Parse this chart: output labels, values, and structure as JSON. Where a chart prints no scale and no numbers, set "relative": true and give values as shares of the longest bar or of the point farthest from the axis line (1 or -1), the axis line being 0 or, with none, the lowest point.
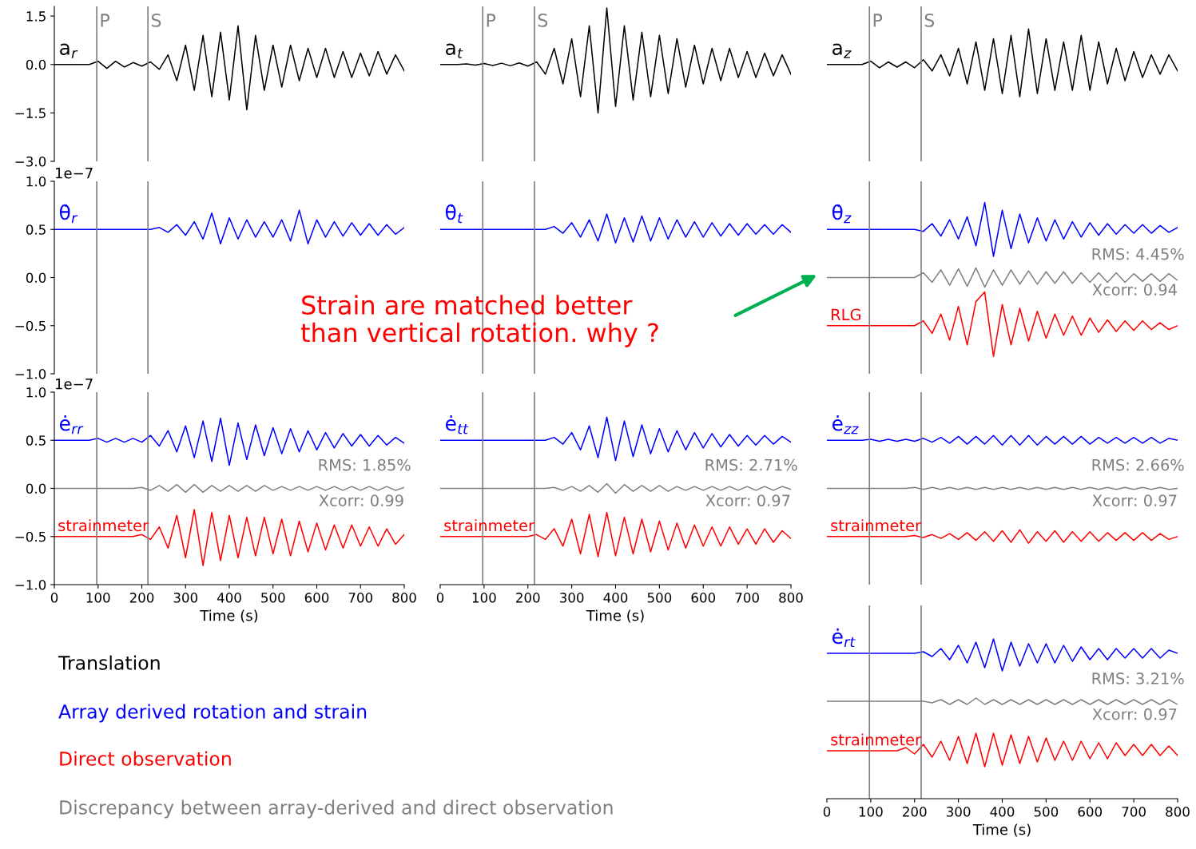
{
  "chart_data": [
    {
      "type": "line",
      "title": "a$_{r}$",
      "xlim": [
        0,
        800
      ],
      "ylim": [
        -3.0,
        1.8
      ],
      "yticks": [
        {
          "value": 1.5,
          "label": "1.5"
        },
        {
          "value": 0,
          "label": "0.0"
        },
        {
          "value": -1.5,
          "label": "−1.5"
        },
        {
          "value": -3.0,
          "label": "−3.0"
        }
      ],
      "tick_labels": "y",
      "x": [
        0,
        20,
        40,
        60,
        80,
        100,
        120,
        140,
        160,
        180,
        200,
        220,
        240,
        260,
        280,
        300,
        320,
        340,
        360,
        380,
        400,
        420,
        440,
        460,
        480,
        500,
        520,
        540,
        560,
        580,
        600,
        620,
        640,
        660,
        680,
        700,
        720,
        740,
        760,
        780,
        800
      ],
      "ref_lines": [
        {
          "axis": "x",
          "value": 97,
          "label": "P",
          "color": "#808080"
        },
        {
          "axis": "x",
          "value": 214,
          "label": "S",
          "color": "#808080"
        }
      ],
      "series": [
        {
          "color": "#000000",
          "values": [
            0,
            0,
            0,
            0,
            0,
            0.1,
            -0.12,
            0.1,
            -0.08,
            0.06,
            -0.05,
            0.08,
            -0.15,
            0.3,
            -0.5,
            0.6,
            -0.8,
            0.9,
            -1.0,
            1.0,
            -1.1,
            1.2,
            -1.4,
            0.9,
            -0.8,
            0.6,
            -0.7,
            0.6,
            -0.5,
            0.5,
            -0.4,
            0.5,
            -0.4,
            0.4,
            -0.4,
            0.35,
            -0.35,
            0.4,
            -0.3,
            0.3,
            -0.2
          ]
        }
      ]
    },
    {
      "type": "line",
      "title": "a$_{t}$",
      "xlim": [
        0,
        800
      ],
      "ylim": [
        -3.0,
        1.8
      ],
      "tick_labels": false,
      "x": [
        0,
        20,
        40,
        60,
        80,
        100,
        120,
        140,
        160,
        180,
        200,
        220,
        240,
        260,
        280,
        300,
        320,
        340,
        360,
        380,
        400,
        420,
        440,
        460,
        480,
        500,
        520,
        540,
        560,
        580,
        600,
        620,
        640,
        660,
        680,
        700,
        720,
        740,
        760,
        780,
        800
      ],
      "ref_lines": [
        {
          "axis": "x",
          "value": 97,
          "label": "P",
          "color": "#808080"
        },
        {
          "axis": "x",
          "value": 215,
          "label": "S",
          "color": "#808080"
        }
      ],
      "series": [
        {
          "color": "#000000",
          "values": [
            0,
            0,
            0,
            0.02,
            -0.02,
            0.03,
            -0.03,
            0.04,
            -0.04,
            0.05,
            -0.05,
            0.08,
            -0.3,
            0.5,
            -0.6,
            0.8,
            -1.0,
            1.2,
            -1.5,
            1.75,
            -1.3,
            1.2,
            -1.1,
            1.0,
            -1.0,
            0.9,
            -0.9,
            0.8,
            -0.7,
            0.6,
            -0.6,
            0.5,
            -0.5,
            0.5,
            -0.4,
            0.4,
            -0.4,
            0.35,
            -0.35,
            0.3,
            -0.3
          ]
        }
      ]
    },
    {
      "type": "line",
      "title": "a$_{z}$",
      "xlim": [
        0,
        800
      ],
      "ylim": [
        -3.0,
        1.8
      ],
      "tick_labels": false,
      "x": [
        0,
        20,
        40,
        60,
        80,
        100,
        120,
        140,
        160,
        180,
        200,
        220,
        240,
        260,
        280,
        300,
        320,
        340,
        360,
        380,
        400,
        420,
        440,
        460,
        480,
        500,
        520,
        540,
        560,
        580,
        600,
        620,
        640,
        660,
        680,
        700,
        720,
        740,
        760,
        780,
        800
      ],
      "ref_lines": [
        {
          "axis": "x",
          "value": 97,
          "label": "P",
          "color": "#808080"
        },
        {
          "axis": "x",
          "value": 215,
          "label": "S",
          "color": "#808080"
        }
      ],
      "series": [
        {
          "color": "#000000",
          "values": [
            0,
            0,
            0,
            0,
            0,
            0.1,
            -0.1,
            0.08,
            -0.08,
            0.08,
            -0.1,
            0.15,
            -0.2,
            0.3,
            -0.35,
            0.5,
            -0.6,
            0.7,
            -0.8,
            0.8,
            -0.9,
            0.9,
            -1.0,
            1.1,
            -0.9,
            0.8,
            -0.8,
            0.7,
            -0.8,
            0.9,
            -0.8,
            0.7,
            -0.6,
            0.5,
            -0.5,
            0.4,
            -0.4,
            0.3,
            -0.3,
            0.3,
            -0.2
          ]
        }
      ]
    },
    {
      "type": "line",
      "title": "θ̇$_{r}$",
      "ylabel": "1e−7",
      "xlim": [
        0,
        800
      ],
      "ylim": [
        -1.0,
        1.0
      ],
      "yticks": [
        {
          "value": 1.0,
          "label": "1.0"
        },
        {
          "value": 0.5,
          "label": "0.5"
        },
        {
          "value": 0,
          "label": "0.0"
        },
        {
          "value": -0.5,
          "label": "−0.5"
        },
        {
          "value": -1.0,
          "label": "−1.0"
        }
      ],
      "tick_labels": "y",
      "x": [
        0,
        20,
        40,
        60,
        80,
        100,
        120,
        140,
        160,
        180,
        200,
        220,
        240,
        260,
        280,
        300,
        320,
        340,
        360,
        380,
        400,
        420,
        440,
        460,
        480,
        500,
        520,
        540,
        560,
        580,
        600,
        620,
        640,
        660,
        680,
        700,
        720,
        740,
        760,
        780,
        800
      ],
      "ref_lines": [
        {
          "axis": "x",
          "value": 97,
          "color": "#808080"
        },
        {
          "axis": "x",
          "value": 214,
          "color": "#808080"
        }
      ],
      "series": [
        {
          "color": "#0000ff",
          "values": [
            0.5,
            0.5,
            0.5,
            0.5,
            0.5,
            0.5,
            0.5,
            0.5,
            0.5,
            0.5,
            0.5,
            0.5,
            0.52,
            0.47,
            0.55,
            0.44,
            0.58,
            0.4,
            0.67,
            0.35,
            0.62,
            0.4,
            0.6,
            0.42,
            0.58,
            0.42,
            0.6,
            0.38,
            0.7,
            0.35,
            0.6,
            0.42,
            0.58,
            0.43,
            0.57,
            0.44,
            0.56,
            0.44,
            0.55,
            0.45,
            0.52
          ]
        }
      ]
    },
    {
      "type": "line",
      "title": "θ̇$_{t}$",
      "xlim": [
        0,
        800
      ],
      "ylim": [
        -1.0,
        1.0
      ],
      "tick_labels": false,
      "x": [
        0,
        20,
        40,
        60,
        80,
        100,
        120,
        140,
        160,
        180,
        200,
        220,
        240,
        260,
        280,
        300,
        320,
        340,
        360,
        380,
        400,
        420,
        440,
        460,
        480,
        500,
        520,
        540,
        560,
        580,
        600,
        620,
        640,
        660,
        680,
        700,
        720,
        740,
        760,
        780,
        800
      ],
      "ref_lines": [
        {
          "axis": "x",
          "value": 97,
          "color": "#808080"
        },
        {
          "axis": "x",
          "value": 215,
          "color": "#808080"
        }
      ],
      "series": [
        {
          "color": "#0000ff",
          "values": [
            0.5,
            0.5,
            0.5,
            0.5,
            0.5,
            0.5,
            0.5,
            0.5,
            0.5,
            0.5,
            0.5,
            0.5,
            0.5,
            0.53,
            0.46,
            0.57,
            0.42,
            0.6,
            0.38,
            0.66,
            0.36,
            0.62,
            0.37,
            0.64,
            0.38,
            0.62,
            0.4,
            0.6,
            0.42,
            0.58,
            0.42,
            0.57,
            0.43,
            0.56,
            0.44,
            0.56,
            0.45,
            0.55,
            0.45,
            0.55,
            0.47
          ]
        }
      ]
    },
    {
      "type": "line",
      "title": "θ̇$_{z}$",
      "xlim": [
        0,
        800
      ],
      "ylim": [
        -1.0,
        1.0
      ],
      "tick_labels": false,
      "annotations": [
        "RMS: 4.45%",
        "Xcorr: 0.94",
        "Strain are matched better\nthan vertical rotation. why ?"
      ],
      "x": [
        0,
        20,
        40,
        60,
        80,
        100,
        120,
        140,
        160,
        180,
        200,
        220,
        240,
        260,
        280,
        300,
        320,
        340,
        360,
        380,
        400,
        420,
        440,
        460,
        480,
        500,
        520,
        540,
        560,
        580,
        600,
        620,
        640,
        660,
        680,
        700,
        720,
        740,
        760,
        780,
        800
      ],
      "ref_lines": [
        {
          "axis": "x",
          "value": 97,
          "color": "#808080"
        },
        {
          "axis": "x",
          "value": 215,
          "color": "#808080"
        }
      ],
      "series": [
        {
          "color": "#0000ff",
          "values": [
            0.5,
            0.5,
            0.5,
            0.5,
            0.5,
            0.5,
            0.5,
            0.5,
            0.5,
            0.5,
            0.5,
            0.48,
            0.56,
            0.43,
            0.6,
            0.4,
            0.63,
            0.33,
            0.78,
            0.22,
            0.7,
            0.3,
            0.66,
            0.36,
            0.62,
            0.38,
            0.6,
            0.4,
            0.58,
            0.42,
            0.57,
            0.44,
            0.56,
            0.45,
            0.55,
            0.46,
            0.55,
            0.46,
            0.54,
            0.47,
            0.52
          ]
        },
        {
          "color": "#808080",
          "values": [
            0,
            0,
            0,
            0,
            0,
            0,
            0,
            0,
            0,
            0,
            0,
            0.05,
            -0.05,
            0.08,
            -0.08,
            0.09,
            -0.09,
            0.1,
            -0.1,
            0.08,
            -0.08,
            0.08,
            -0.07,
            0.07,
            -0.07,
            0.06,
            -0.06,
            0.06,
            -0.06,
            0.05,
            -0.05,
            0.05,
            -0.05,
            0.05,
            -0.05,
            0.04,
            -0.04,
            0.04,
            -0.04,
            0.04,
            -0.03
          ]
        },
        {
          "name": "RLG",
          "color": "#ff0000",
          "values": [
            -0.5,
            -0.5,
            -0.5,
            -0.5,
            -0.5,
            -0.5,
            -0.5,
            -0.5,
            -0.5,
            -0.5,
            -0.5,
            -0.45,
            -0.58,
            -0.38,
            -0.65,
            -0.3,
            -0.7,
            -0.25,
            -0.15,
            -0.82,
            -0.28,
            -0.7,
            -0.32,
            -0.66,
            -0.35,
            -0.63,
            -0.38,
            -0.6,
            -0.4,
            -0.6,
            -0.42,
            -0.57,
            -0.44,
            -0.56,
            -0.45,
            -0.55,
            -0.45,
            -0.54,
            -0.47,
            -0.54,
            -0.5
          ]
        }
      ]
    },
    {
      "type": "line",
      "title": "ė$_{rr}$",
      "ylabel": "1e−7",
      "xlabel": "Time (s)",
      "xlim": [
        0,
        800
      ],
      "ylim": [
        -1.0,
        1.0
      ],
      "xticks": [
        0,
        100,
        200,
        300,
        400,
        500,
        600,
        700,
        800
      ],
      "yticks": [
        {
          "value": 1.0,
          "label": "1.0"
        },
        {
          "value": 0.5,
          "label": "0.5"
        },
        {
          "value": 0,
          "label": "0.0"
        },
        {
          "value": -0.5,
          "label": "−0.5"
        },
        {
          "value": -1.0,
          "label": "−1.0"
        }
      ],
      "annotations": [
        "RMS: 1.85%",
        "Xcorr: 0.99"
      ],
      "x": [
        0,
        20,
        40,
        60,
        80,
        100,
        120,
        140,
        160,
        180,
        200,
        220,
        240,
        260,
        280,
        300,
        320,
        340,
        360,
        380,
        400,
        420,
        440,
        460,
        480,
        500,
        520,
        540,
        560,
        580,
        600,
        620,
        640,
        660,
        680,
        700,
        720,
        740,
        760,
        780,
        800
      ],
      "ref_lines": [
        {
          "axis": "x",
          "value": 97,
          "color": "#808080"
        },
        {
          "axis": "x",
          "value": 214,
          "color": "#808080"
        }
      ],
      "series": [
        {
          "color": "#0000ff",
          "values": [
            0.5,
            0.5,
            0.5,
            0.5,
            0.5,
            0.52,
            0.48,
            0.52,
            0.48,
            0.52,
            0.48,
            0.55,
            0.44,
            0.6,
            0.38,
            0.65,
            0.32,
            0.7,
            0.28,
            0.73,
            0.24,
            0.68,
            0.3,
            0.66,
            0.34,
            0.63,
            0.36,
            0.62,
            0.38,
            0.6,
            0.4,
            0.58,
            0.42,
            0.57,
            0.44,
            0.56,
            0.44,
            0.55,
            0.45,
            0.53,
            0.47
          ]
        },
        {
          "color": "#808080",
          "values": [
            0,
            0,
            0,
            0,
            0,
            0,
            0,
            0,
            0,
            0,
            0.01,
            -0.02,
            0.03,
            -0.03,
            0.04,
            -0.04,
            0.04,
            -0.04,
            0.03,
            -0.03,
            0.03,
            -0.03,
            0.03,
            -0.03,
            0.03,
            -0.02,
            0.02,
            -0.02,
            0.02,
            -0.02,
            0.02,
            -0.02,
            0.02,
            -0.02,
            0.02,
            -0.02,
            0.02,
            -0.02,
            0.02,
            -0.02,
            0.01
          ]
        },
        {
          "name": "strainmeter",
          "color": "#ff0000",
          "values": [
            -0.5,
            -0.5,
            -0.5,
            -0.5,
            -0.5,
            -0.5,
            -0.5,
            -0.5,
            -0.5,
            -0.5,
            -0.48,
            -0.53,
            -0.4,
            -0.62,
            -0.28,
            -0.72,
            -0.22,
            -0.8,
            -0.25,
            -0.75,
            -0.28,
            -0.72,
            -0.3,
            -0.7,
            -0.3,
            -0.68,
            -0.32,
            -0.7,
            -0.34,
            -0.66,
            -0.36,
            -0.64,
            -0.38,
            -0.62,
            -0.38,
            -0.6,
            -0.4,
            -0.6,
            -0.42,
            -0.58,
            -0.48
          ]
        }
      ]
    },
    {
      "type": "line",
      "title": "ė$_{tt}$",
      "xlabel": "Time (s)",
      "xlim": [
        0,
        800
      ],
      "ylim": [
        -1.0,
        1.0
      ],
      "xticks": [
        0,
        100,
        200,
        300,
        400,
        500,
        600,
        700,
        800
      ],
      "tick_labels": "x",
      "annotations": [
        "RMS: 2.71%",
        "Xcorr: 0.97"
      ],
      "x": [
        0,
        20,
        40,
        60,
        80,
        100,
        120,
        140,
        160,
        180,
        200,
        220,
        240,
        260,
        280,
        300,
        320,
        340,
        360,
        380,
        400,
        420,
        440,
        460,
        480,
        500,
        520,
        540,
        560,
        580,
        600,
        620,
        640,
        660,
        680,
        700,
        720,
        740,
        760,
        780,
        800
      ],
      "ref_lines": [
        {
          "axis": "x",
          "value": 97,
          "color": "#808080"
        },
        {
          "axis": "x",
          "value": 215,
          "color": "#808080"
        }
      ],
      "series": [
        {
          "color": "#0000ff",
          "values": [
            0.5,
            0.5,
            0.5,
            0.5,
            0.5,
            0.5,
            0.5,
            0.5,
            0.5,
            0.5,
            0.5,
            0.5,
            0.5,
            0.53,
            0.46,
            0.58,
            0.4,
            0.65,
            0.32,
            0.74,
            0.29,
            0.7,
            0.33,
            0.66,
            0.36,
            0.62,
            0.38,
            0.6,
            0.4,
            0.58,
            0.42,
            0.57,
            0.43,
            0.56,
            0.44,
            0.55,
            0.45,
            0.55,
            0.46,
            0.54,
            0.48
          ]
        },
        {
          "color": "#808080",
          "values": [
            0,
            0,
            0,
            0,
            0,
            0,
            0,
            0,
            0,
            0,
            0,
            0,
            0,
            0.01,
            -0.02,
            0.02,
            -0.03,
            0.03,
            -0.04,
            0.05,
            -0.05,
            0.04,
            -0.03,
            0.03,
            -0.03,
            0.03,
            -0.03,
            0.02,
            -0.02,
            0.02,
            -0.02,
            0.02,
            -0.02,
            0.02,
            -0.02,
            0.02,
            -0.02,
            0.02,
            -0.02,
            0.02,
            -0.01
          ]
        },
        {
          "name": "strainmeter",
          "color": "#ff0000",
          "values": [
            -0.5,
            -0.5,
            -0.5,
            -0.5,
            -0.5,
            -0.5,
            -0.5,
            -0.5,
            -0.5,
            -0.5,
            -0.5,
            -0.48,
            -0.53,
            -0.42,
            -0.6,
            -0.32,
            -0.68,
            -0.27,
            -0.71,
            -0.25,
            -0.7,
            -0.3,
            -0.68,
            -0.32,
            -0.66,
            -0.34,
            -0.64,
            -0.36,
            -0.62,
            -0.38,
            -0.6,
            -0.4,
            -0.6,
            -0.4,
            -0.58,
            -0.42,
            -0.58,
            -0.42,
            -0.56,
            -0.44,
            -0.52
          ]
        }
      ]
    },
    {
      "type": "line",
      "title": "ė$_{zz}$",
      "xlim": [
        0,
        800
      ],
      "ylim": [
        -1.0,
        1.0
      ],
      "tick_labels": false,
      "annotations": [
        "RMS: 2.66%",
        "Xcorr: 0.97"
      ],
      "x": [
        0,
        20,
        40,
        60,
        80,
        100,
        120,
        140,
        160,
        180,
        200,
        220,
        240,
        260,
        280,
        300,
        320,
        340,
        360,
        380,
        400,
        420,
        440,
        460,
        480,
        500,
        520,
        540,
        560,
        580,
        600,
        620,
        640,
        660,
        680,
        700,
        720,
        740,
        760,
        780,
        800
      ],
      "ref_lines": [
        {
          "axis": "x",
          "value": 97,
          "color": "#808080"
        },
        {
          "axis": "x",
          "value": 215,
          "color": "#808080"
        }
      ],
      "series": [
        {
          "color": "#0000ff",
          "values": [
            0.5,
            0.5,
            0.5,
            0.5,
            0.5,
            0.51,
            0.49,
            0.51,
            0.49,
            0.51,
            0.49,
            0.52,
            0.48,
            0.53,
            0.47,
            0.54,
            0.46,
            0.54,
            0.46,
            0.55,
            0.45,
            0.55,
            0.45,
            0.55,
            0.45,
            0.54,
            0.46,
            0.54,
            0.46,
            0.54,
            0.46,
            0.53,
            0.47,
            0.53,
            0.47,
            0.53,
            0.47,
            0.53,
            0.47,
            0.52,
            0.5
          ]
        },
        {
          "color": "#808080",
          "values": [
            0,
            0,
            0,
            0,
            0,
            0,
            0,
            0,
            0,
            0,
            0.01,
            -0.01,
            0.01,
            -0.01,
            0.01,
            -0.01,
            0.01,
            -0.01,
            0.01,
            -0.01,
            0.01,
            -0.01,
            0.01,
            -0.01,
            0.01,
            -0.01,
            0.01,
            -0.01,
            0.01,
            -0.01,
            0.01,
            -0.01,
            0.01,
            -0.01,
            0.01,
            -0.01,
            0.01,
            -0.01,
            0.01,
            -0.01,
            0
          ]
        },
        {
          "name": "strainmeter",
          "color": "#ff0000",
          "values": [
            -0.5,
            -0.5,
            -0.5,
            -0.5,
            -0.5,
            -0.5,
            -0.5,
            -0.5,
            -0.5,
            -0.5,
            -0.49,
            -0.51,
            -0.48,
            -0.52,
            -0.47,
            -0.53,
            -0.46,
            -0.54,
            -0.45,
            -0.55,
            -0.44,
            -0.56,
            -0.43,
            -0.57,
            -0.45,
            -0.55,
            -0.44,
            -0.56,
            -0.45,
            -0.55,
            -0.45,
            -0.55,
            -0.46,
            -0.54,
            -0.46,
            -0.54,
            -0.46,
            -0.54,
            -0.47,
            -0.53,
            -0.5
          ]
        }
      ]
    },
    {
      "type": "line",
      "title": "ė$_{rt}$",
      "xlabel": "Time (s)",
      "xlim": [
        0,
        800
      ],
      "relative": true,
      "xticks": [
        0,
        100,
        200,
        300,
        400,
        500,
        600,
        700,
        800
      ],
      "tick_labels": "x",
      "annotations": [
        "RMS: 3.21%",
        "Xcorr: 0.97"
      ],
      "x": [
        0,
        20,
        40,
        60,
        80,
        100,
        120,
        140,
        160,
        180,
        200,
        220,
        240,
        260,
        280,
        300,
        320,
        340,
        360,
        380,
        400,
        420,
        440,
        460,
        480,
        500,
        520,
        540,
        560,
        580,
        600,
        620,
        640,
        660,
        680,
        700,
        720,
        740,
        760,
        780,
        800
      ],
      "ref_lines": [
        {
          "axis": "x",
          "value": 97,
          "color": "#808080"
        },
        {
          "axis": "x",
          "value": 215,
          "color": "#808080"
        }
      ],
      "series": [
        {
          "color": "#0000ff",
          "values": [
            0.91,
            0.91,
            0.91,
            0.91,
            0.91,
            0.91,
            0.91,
            0.91,
            0.91,
            0.91,
            0.91,
            0.92,
            0.89,
            0.94,
            0.87,
            0.96,
            0.85,
            0.98,
            0.82,
            1.0,
            0.8,
            0.98,
            0.83,
            0.97,
            0.85,
            0.97,
            0.85,
            0.96,
            0.86,
            0.95,
            0.87,
            0.94,
            0.87,
            0.94,
            0.88,
            0.94,
            0.88,
            0.94,
            0.88,
            0.93,
            0.91
          ]
        },
        {
          "color": "#808080",
          "values": [
            0.61,
            0.61,
            0.61,
            0.61,
            0.61,
            0.61,
            0.61,
            0.61,
            0.61,
            0.61,
            0.61,
            0.61,
            0.6,
            0.62,
            0.59,
            0.62,
            0.59,
            0.63,
            0.59,
            0.62,
            0.59,
            0.62,
            0.59,
            0.62,
            0.59,
            0.62,
            0.59,
            0.62,
            0.59,
            0.62,
            0.59,
            0.62,
            0.59,
            0.62,
            0.59,
            0.62,
            0.59,
            0.62,
            0.59,
            0.62,
            0.59
          ]
        },
        {
          "name": "strainmeter",
          "color": "#ff0000",
          "values": [
            0.3,
            0.3,
            0.3,
            0.3,
            0.3,
            0.3,
            0.3,
            0.3,
            0.3,
            0.32,
            0.28,
            0.34,
            0.26,
            0.36,
            0.24,
            0.39,
            0.22,
            0.41,
            0.2,
            0.41,
            0.21,
            0.4,
            0.22,
            0.39,
            0.23,
            0.38,
            0.24,
            0.36,
            0.24,
            0.36,
            0.25,
            0.35,
            0.25,
            0.35,
            0.27,
            0.34,
            0.27,
            0.34,
            0.27,
            0.33,
            0.27
          ]
        }
      ]
    },
    {
      "type": "other",
      "categories": [
        "Translation",
        "Array derived rotation and strain",
        "Direct observation",
        "Discrepancy between array-derived and direct observation"
      ],
      "colors": [
        "#000000",
        "#0000ff",
        "#ff0000",
        "#808080"
      ]
    }
  ]
}
